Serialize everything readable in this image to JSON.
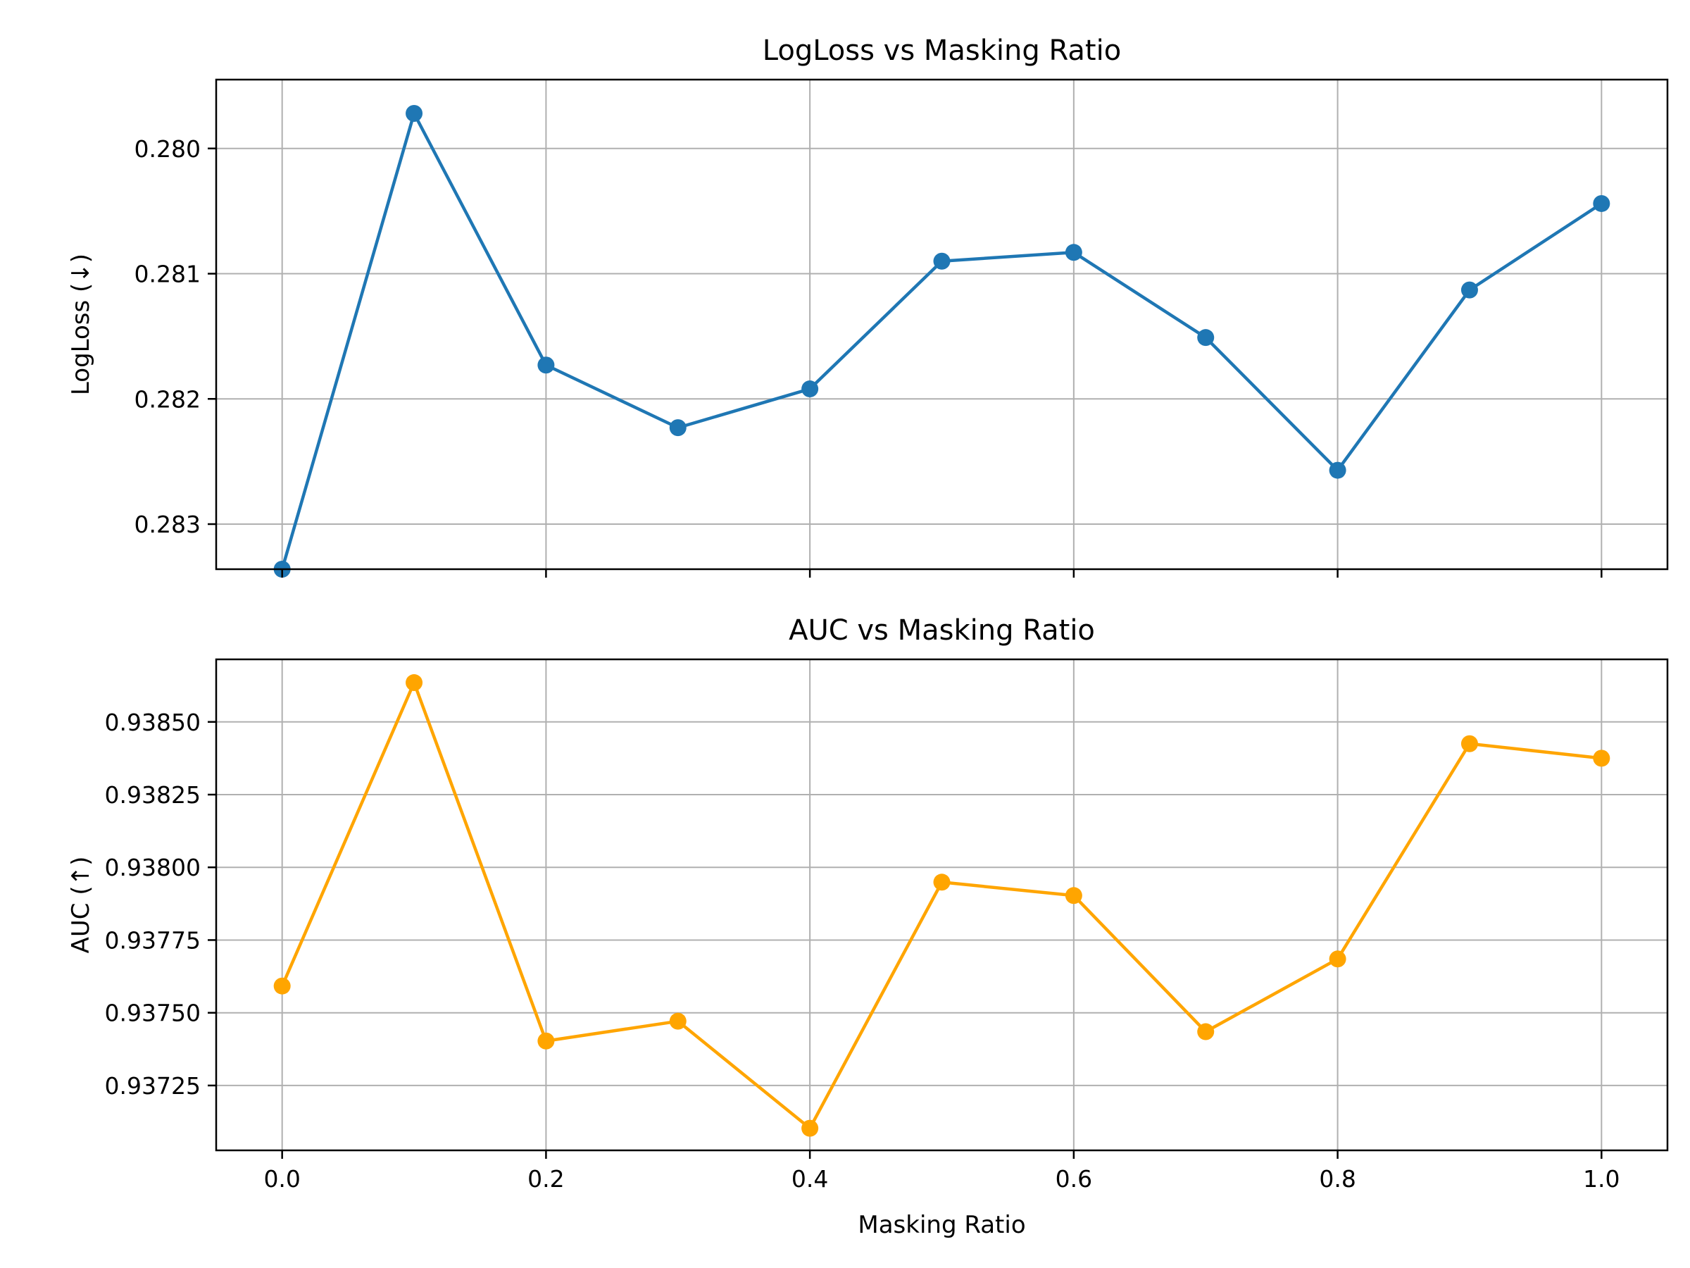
{
  "chart_data": [
    {
      "type": "line",
      "title": "LogLoss vs Masking Ratio",
      "xlabel": "",
      "ylabel": "LogLoss (↓)",
      "y_inverted": true,
      "grid": true,
      "x": [
        0.0,
        0.1,
        0.2,
        0.3,
        0.4,
        0.5,
        0.6,
        0.7,
        0.8,
        0.9,
        1.0
      ],
      "x_ticks": [
        0.0,
        0.2,
        0.4,
        0.6,
        0.8,
        1.0
      ],
      "x_tick_labels_shown": false,
      "xlim": [
        -0.05,
        1.05
      ],
      "y_ticks": [
        0.28,
        0.281,
        0.282,
        0.283
      ],
      "y_tick_labels": [
        "0.280",
        "0.281",
        "0.282",
        "0.283"
      ],
      "ylim": [
        0.28336,
        0.27945
      ],
      "series": [
        {
          "color": "#1f77b4",
          "values": [
            0.28336,
            0.27972,
            0.28173,
            0.28223,
            0.28192,
            0.2809,
            0.28083,
            0.28151,
            0.28257,
            0.28113,
            0.28044
          ]
        }
      ]
    },
    {
      "type": "line",
      "title": "AUC vs Masking Ratio",
      "xlabel": "Masking Ratio",
      "ylabel": "AUC (↑)",
      "grid": true,
      "x": [
        0.0,
        0.1,
        0.2,
        0.3,
        0.4,
        0.5,
        0.6,
        0.7,
        0.8,
        0.9,
        1.0
      ],
      "x_ticks": [
        0.0,
        0.2,
        0.4,
        0.6,
        0.8,
        1.0
      ],
      "x_tick_labels": [
        "0.0",
        "0.2",
        "0.4",
        "0.6",
        "0.8",
        "1.0"
      ],
      "xlim": [
        -0.05,
        1.05
      ],
      "y_ticks": [
        0.93725,
        0.9375,
        0.93775,
        0.938,
        0.93825,
        0.9385
      ],
      "y_tick_labels": [
        "0.93725",
        "0.93750",
        "0.93775",
        "0.93800",
        "0.93825",
        "0.93850"
      ],
      "ylim": [
        0.937027,
        0.938715
      ],
      "series": [
        {
          "color": "#ffa500",
          "values": [
            0.937592,
            0.938635,
            0.937403,
            0.937471,
            0.937103,
            0.937949,
            0.937903,
            0.937435,
            0.937685,
            0.938425,
            0.938375
          ]
        }
      ]
    }
  ]
}
